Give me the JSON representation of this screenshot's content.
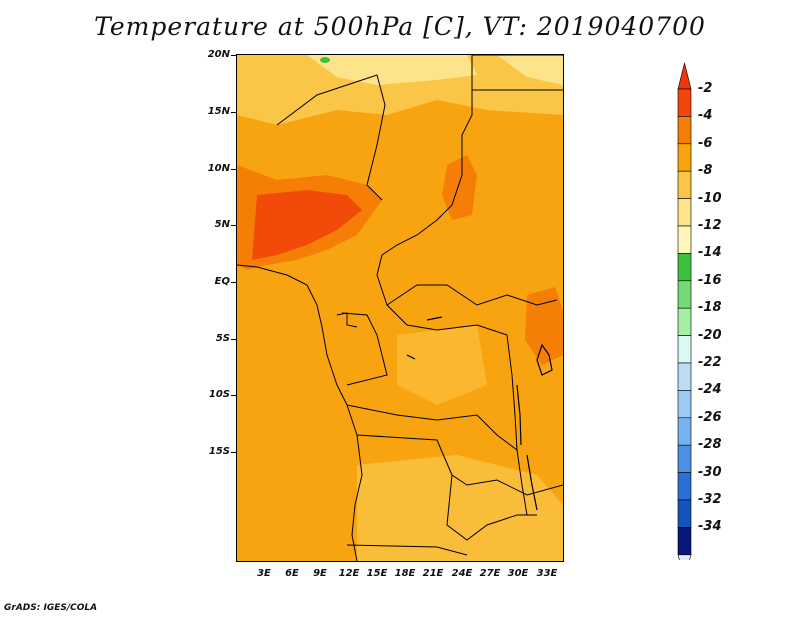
{
  "title": "Temperature at 500hPa [C], VT: 2019040700",
  "credit": "GrADS: IGES/COLA",
  "lat_labels": [
    "20N",
    "15N",
    "10N",
    "5N",
    "EQ",
    "5S",
    "10S",
    "15S"
  ],
  "lon_labels": [
    "3E",
    "6E",
    "9E",
    "12E",
    "15E",
    "18E",
    "21E",
    "24E",
    "27E",
    "30E",
    "33E"
  ],
  "colorbar": {
    "labels": [
      "-2",
      "-4",
      "-6",
      "-8",
      "-10",
      "-12",
      "-14",
      "-16",
      "-18",
      "-20",
      "-22",
      "-24",
      "-26",
      "-28",
      "-30",
      "-32",
      "-34"
    ],
    "colors": [
      "#f2460a",
      "#f57f06",
      "#f8a410",
      "#fbc648",
      "#fde48a",
      "#fff6be",
      "#3cc13c",
      "#73db73",
      "#a6eda6",
      "#dcf9f4",
      "#bddbf4",
      "#9ccaf2",
      "#76b2ee",
      "#4c90e4",
      "#2a6ed6",
      "#1454bc",
      "#0a167a"
    ],
    "over_color": "#f0360a",
    "under_color": "#e6e8f8"
  }
}
